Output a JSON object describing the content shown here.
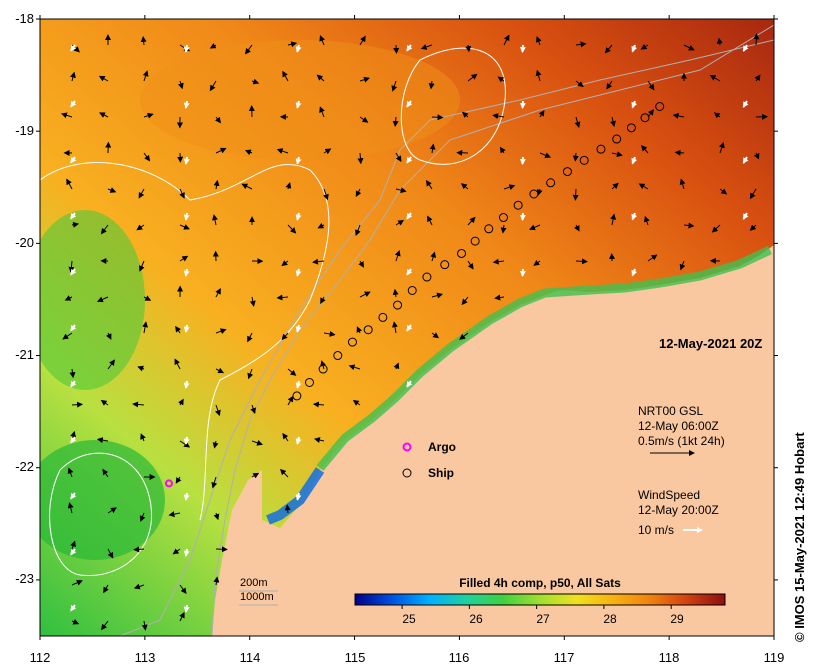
{
  "map": {
    "lat_ticks": [
      "-18",
      "-19",
      "-20",
      "-21",
      "-22",
      "-23"
    ],
    "lat_values": [
      -18,
      -19,
      -20,
      -21,
      -22,
      -23
    ],
    "lon_ticks": [
      "112",
      "113",
      "114",
      "115",
      "116",
      "117",
      "118",
      "119"
    ],
    "lon_values": [
      112,
      113,
      114,
      115,
      116,
      117,
      118,
      119
    ],
    "lon_range": [
      112,
      119
    ],
    "lat_range": [
      -23.5,
      -18
    ],
    "date_stamp": "12-May-2021 20Z",
    "credit": "© IMOS 15-May-2021 12:49 Hobart",
    "land_color": "#f9c8a0",
    "contour_color": "#ffffff",
    "bathymetry_color": "#b0b0b0"
  },
  "legend": {
    "argo_label": "Argo",
    "ship_label": "Ship",
    "argo_color": "#ff00ff",
    "current_title": "NRT00 GSL",
    "current_time": "12-May 06:00Z",
    "current_scale": "0.5m/s (1kt 24h)",
    "wind_title": "WindSpeed",
    "wind_time": "12-May 20:00Z",
    "wind_scale": "10 m/s",
    "bathy_200": "200m",
    "bathy_1000": "1000m"
  },
  "colorbar": {
    "title": "Filled 4h comp, p50, All Sats",
    "ticks": [
      "25",
      "26",
      "27",
      "28",
      "29"
    ],
    "tick_values": [
      25,
      26,
      27,
      28,
      29
    ],
    "range": [
      24.3,
      29.8
    ],
    "colors": [
      "#00008b",
      "#0050e0",
      "#00b0ff",
      "#20d0a0",
      "#40d040",
      "#a0e030",
      "#f0e020",
      "#f8b010",
      "#f08010",
      "#d04010",
      "#8b1010"
    ]
  },
  "ship_track": {
    "lon": [
      114.45,
      114.57,
      114.7,
      114.84,
      114.98,
      115.13,
      115.27,
      115.41,
      115.55,
      115.69,
      115.86,
      116.02,
      116.15,
      116.28,
      116.42,
      116.56,
      116.71,
      116.87,
      117.03,
      117.19,
      117.35,
      117.5,
      117.64,
      117.77,
      117.91
    ],
    "lat": [
      -21.36,
      -21.24,
      -21.12,
      -21.0,
      -20.88,
      -20.77,
      -20.66,
      -20.55,
      -20.42,
      -20.3,
      -20.19,
      -20.09,
      -19.98,
      -19.87,
      -19.77,
      -19.66,
      -19.56,
      -19.46,
      -19.36,
      -19.26,
      -19.16,
      -19.07,
      -18.97,
      -18.88,
      -18.78
    ]
  },
  "argo": {
    "lon": 113.23,
    "lat": -22.14
  }
}
